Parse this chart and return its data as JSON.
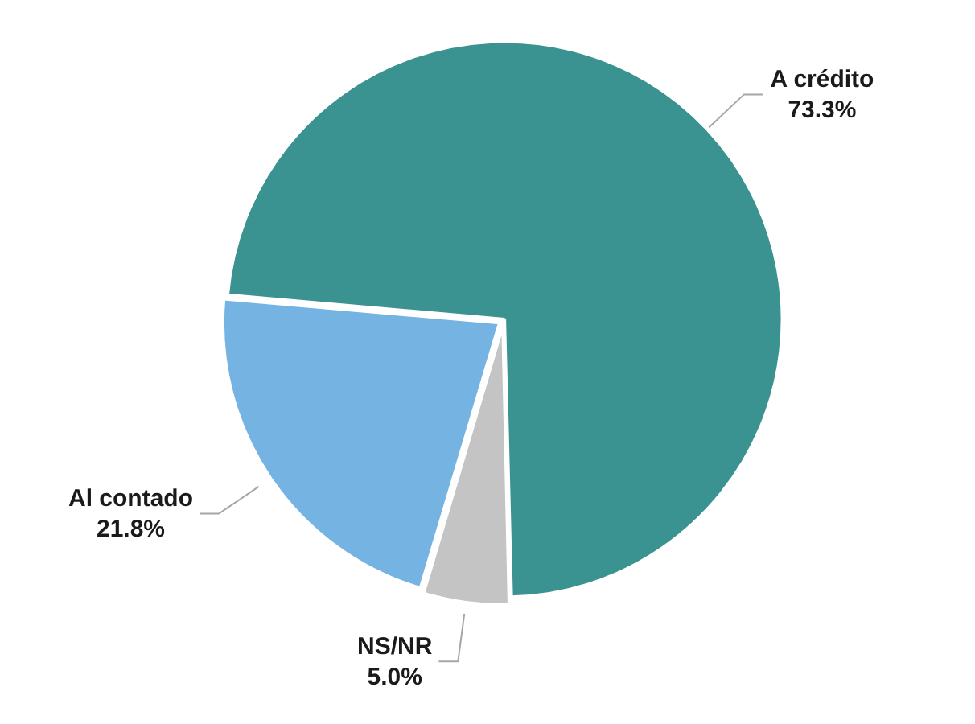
{
  "chart_data": {
    "type": "pie",
    "categories": [
      "A crédito",
      "NS/NR",
      "Al contado"
    ],
    "values": [
      73.3,
      5.0,
      21.8
    ],
    "colors": [
      "#3b9391",
      "#c4c4c4",
      "#74b3e2"
    ],
    "value_labels": [
      "73.3%",
      "5.0%",
      "21.8%"
    ],
    "legend": false
  }
}
